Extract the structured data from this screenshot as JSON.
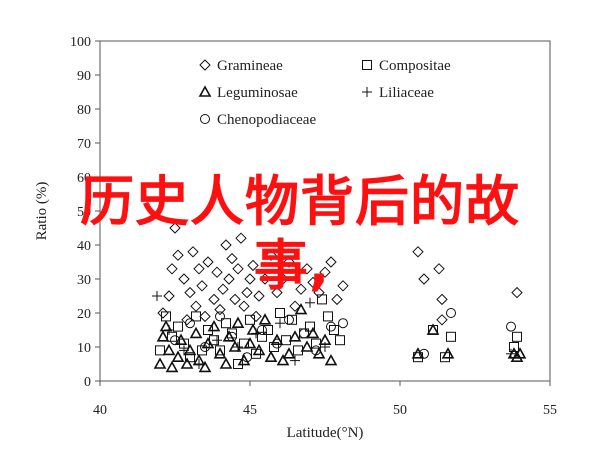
{
  "chart_data": {
    "type": "scatter",
    "title": "",
    "xlabel": "Latitude(°N)",
    "ylabel": "Ratio (%)",
    "xlim": [
      40,
      55
    ],
    "ylim": [
      0,
      100
    ],
    "xticks": [
      40,
      45,
      50,
      55
    ],
    "yticks": [
      0,
      10,
      20,
      30,
      40,
      50,
      60,
      70,
      80,
      90,
      100
    ],
    "grid": false,
    "legend_position": "top-center",
    "series": [
      {
        "name": "Gramineae",
        "marker": "diamond",
        "points": [
          [
            42.1,
            20
          ],
          [
            42.3,
            25
          ],
          [
            42.4,
            33
          ],
          [
            42.5,
            45
          ],
          [
            42.6,
            37
          ],
          [
            42.8,
            30
          ],
          [
            42.9,
            18
          ],
          [
            43.0,
            26
          ],
          [
            43.1,
            38
          ],
          [
            43.2,
            22
          ],
          [
            43.3,
            33
          ],
          [
            43.4,
            28
          ],
          [
            43.5,
            19
          ],
          [
            43.6,
            35
          ],
          [
            43.8,
            24
          ],
          [
            43.9,
            32
          ],
          [
            44.0,
            21
          ],
          [
            44.1,
            27
          ],
          [
            44.2,
            40
          ],
          [
            44.3,
            30
          ],
          [
            44.4,
            36
          ],
          [
            44.5,
            24
          ],
          [
            44.6,
            33
          ],
          [
            44.7,
            42
          ],
          [
            44.8,
            22
          ],
          [
            44.9,
            26
          ],
          [
            45.0,
            30
          ],
          [
            45.1,
            34
          ],
          [
            45.2,
            19
          ],
          [
            45.3,
            25
          ],
          [
            45.5,
            30
          ],
          [
            45.7,
            37
          ],
          [
            45.9,
            26
          ],
          [
            46.1,
            30
          ],
          [
            46.3,
            35
          ],
          [
            46.5,
            22
          ],
          [
            46.7,
            27
          ],
          [
            46.9,
            33
          ],
          [
            47.1,
            29
          ],
          [
            47.3,
            26
          ],
          [
            47.5,
            32
          ],
          [
            47.7,
            35
          ],
          [
            47.9,
            24
          ],
          [
            48.1,
            28
          ],
          [
            50.6,
            38
          ],
          [
            50.8,
            30
          ],
          [
            51.3,
            33
          ],
          [
            51.4,
            18
          ],
          [
            51.4,
            24
          ],
          [
            53.9,
            26
          ]
        ]
      },
      {
        "name": "Compositae",
        "marker": "square",
        "points": [
          [
            42.0,
            9
          ],
          [
            42.2,
            19
          ],
          [
            42.4,
            13
          ],
          [
            42.6,
            16
          ],
          [
            42.8,
            11
          ],
          [
            43.0,
            7
          ],
          [
            43.2,
            19
          ],
          [
            43.4,
            9
          ],
          [
            43.6,
            15
          ],
          [
            43.8,
            12
          ],
          [
            44.0,
            9
          ],
          [
            44.2,
            17
          ],
          [
            44.4,
            14
          ],
          [
            44.6,
            5
          ],
          [
            44.8,
            11
          ],
          [
            45.0,
            18
          ],
          [
            45.2,
            8
          ],
          [
            45.4,
            13
          ],
          [
            45.6,
            15
          ],
          [
            45.8,
            10
          ],
          [
            46.0,
            20
          ],
          [
            46.2,
            12
          ],
          [
            46.4,
            18
          ],
          [
            46.6,
            9
          ],
          [
            46.8,
            14
          ],
          [
            47.0,
            16
          ],
          [
            47.2,
            11
          ],
          [
            47.4,
            24
          ],
          [
            47.6,
            19
          ],
          [
            47.8,
            15
          ],
          [
            48.0,
            12
          ],
          [
            50.6,
            7
          ],
          [
            51.1,
            15
          ],
          [
            51.5,
            7
          ],
          [
            51.7,
            13
          ],
          [
            53.8,
            10
          ],
          [
            53.9,
            13
          ]
        ]
      },
      {
        "name": "Leguminosae",
        "marker": "triangle",
        "points": [
          [
            42.0,
            5
          ],
          [
            42.1,
            13
          ],
          [
            42.2,
            16
          ],
          [
            42.3,
            9
          ],
          [
            42.4,
            4
          ],
          [
            42.6,
            7
          ],
          [
            42.7,
            12
          ],
          [
            42.9,
            5
          ],
          [
            43.0,
            9
          ],
          [
            43.2,
            14
          ],
          [
            43.3,
            6
          ],
          [
            43.5,
            4
          ],
          [
            43.6,
            11
          ],
          [
            43.8,
            16
          ],
          [
            44.0,
            8
          ],
          [
            44.2,
            5
          ],
          [
            44.3,
            13
          ],
          [
            44.5,
            10
          ],
          [
            44.6,
            17
          ],
          [
            44.8,
            6
          ],
          [
            45.0,
            11
          ],
          [
            45.1,
            15
          ],
          [
            45.3,
            9
          ],
          [
            45.5,
            18
          ],
          [
            45.7,
            7
          ],
          [
            45.9,
            12
          ],
          [
            46.1,
            6
          ],
          [
            46.3,
            8
          ],
          [
            46.5,
            13
          ],
          [
            46.7,
            21
          ],
          [
            46.9,
            10
          ],
          [
            47.1,
            14
          ],
          [
            47.3,
            8
          ],
          [
            47.5,
            12
          ],
          [
            47.7,
            6
          ],
          [
            50.6,
            8
          ],
          [
            51.1,
            15
          ],
          [
            51.6,
            8
          ],
          [
            53.8,
            8
          ],
          [
            53.9,
            7
          ],
          [
            54.0,
            8
          ]
        ]
      },
      {
        "name": "Liliaceae",
        "marker": "plus",
        "points": [
          [
            41.9,
            25
          ],
          [
            42.3,
            15
          ],
          [
            42.8,
            9
          ],
          [
            43.3,
            5
          ],
          [
            43.9,
            12
          ],
          [
            44.6,
            10
          ],
          [
            45.2,
            14
          ],
          [
            46.0,
            17
          ],
          [
            46.5,
            6
          ],
          [
            47.0,
            23
          ],
          [
            47.5,
            10
          ],
          [
            53.7,
            8
          ]
        ]
      },
      {
        "name": "Chenopodiaceae",
        "marker": "circle",
        "points": [
          [
            42.5,
            12
          ],
          [
            43.0,
            17
          ],
          [
            43.5,
            10
          ],
          [
            44.0,
            19
          ],
          [
            44.4,
            13
          ],
          [
            44.9,
            7
          ],
          [
            45.4,
            15
          ],
          [
            45.9,
            11
          ],
          [
            46.3,
            18
          ],
          [
            46.8,
            14
          ],
          [
            47.2,
            9
          ],
          [
            47.7,
            16
          ],
          [
            48.1,
            17
          ],
          [
            50.8,
            8
          ],
          [
            51.7,
            20
          ],
          [
            53.7,
            16
          ]
        ]
      }
    ]
  },
  "overlay": {
    "line1": "历史人物背后的故",
    "line2": "事,"
  }
}
